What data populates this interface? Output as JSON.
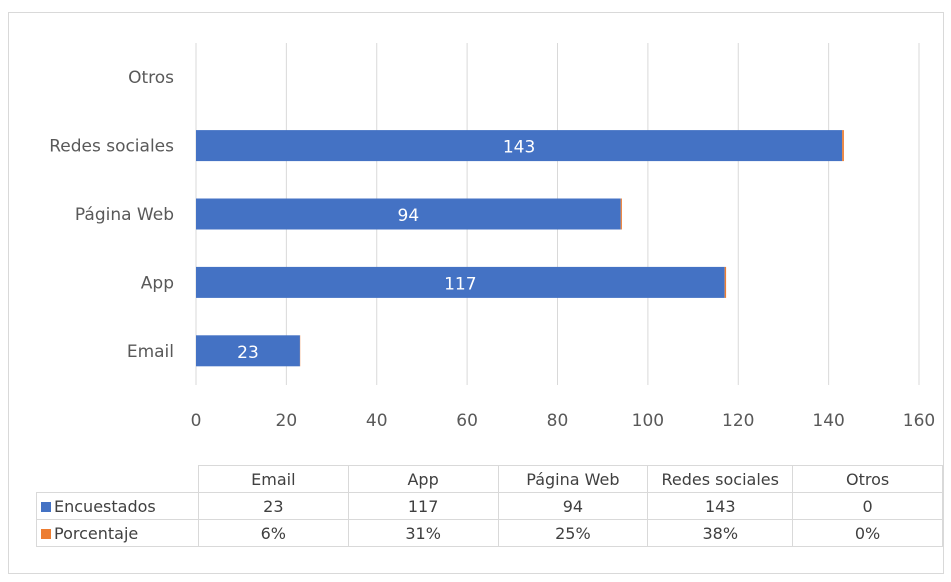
{
  "chart_data": {
    "type": "bar",
    "orientation": "horizontal",
    "stacked": true,
    "categories": [
      "Email",
      "App",
      "Página Web",
      "Redes sociales",
      "Otros"
    ],
    "series": [
      {
        "name": "Encuestados",
        "values": [
          23,
          117,
          94,
          143,
          0
        ],
        "display": [
          "23",
          "117",
          "94",
          "143",
          "0"
        ],
        "color": "#4472C4"
      },
      {
        "name": "Porcentaje",
        "values": [
          0.06,
          0.31,
          0.25,
          0.38,
          0.0
        ],
        "display": [
          "6%",
          "31%",
          "25%",
          "38%",
          "0%"
        ],
        "color": "#ED7D31"
      }
    ],
    "data_labels": [
      "23",
      "117",
      "94",
      "143"
    ],
    "xlim": [
      0,
      160
    ],
    "xticks": [
      "0",
      "20",
      "40",
      "60",
      "80",
      "100",
      "120",
      "140",
      "160"
    ],
    "grid": true,
    "legend": "data-table"
  }
}
